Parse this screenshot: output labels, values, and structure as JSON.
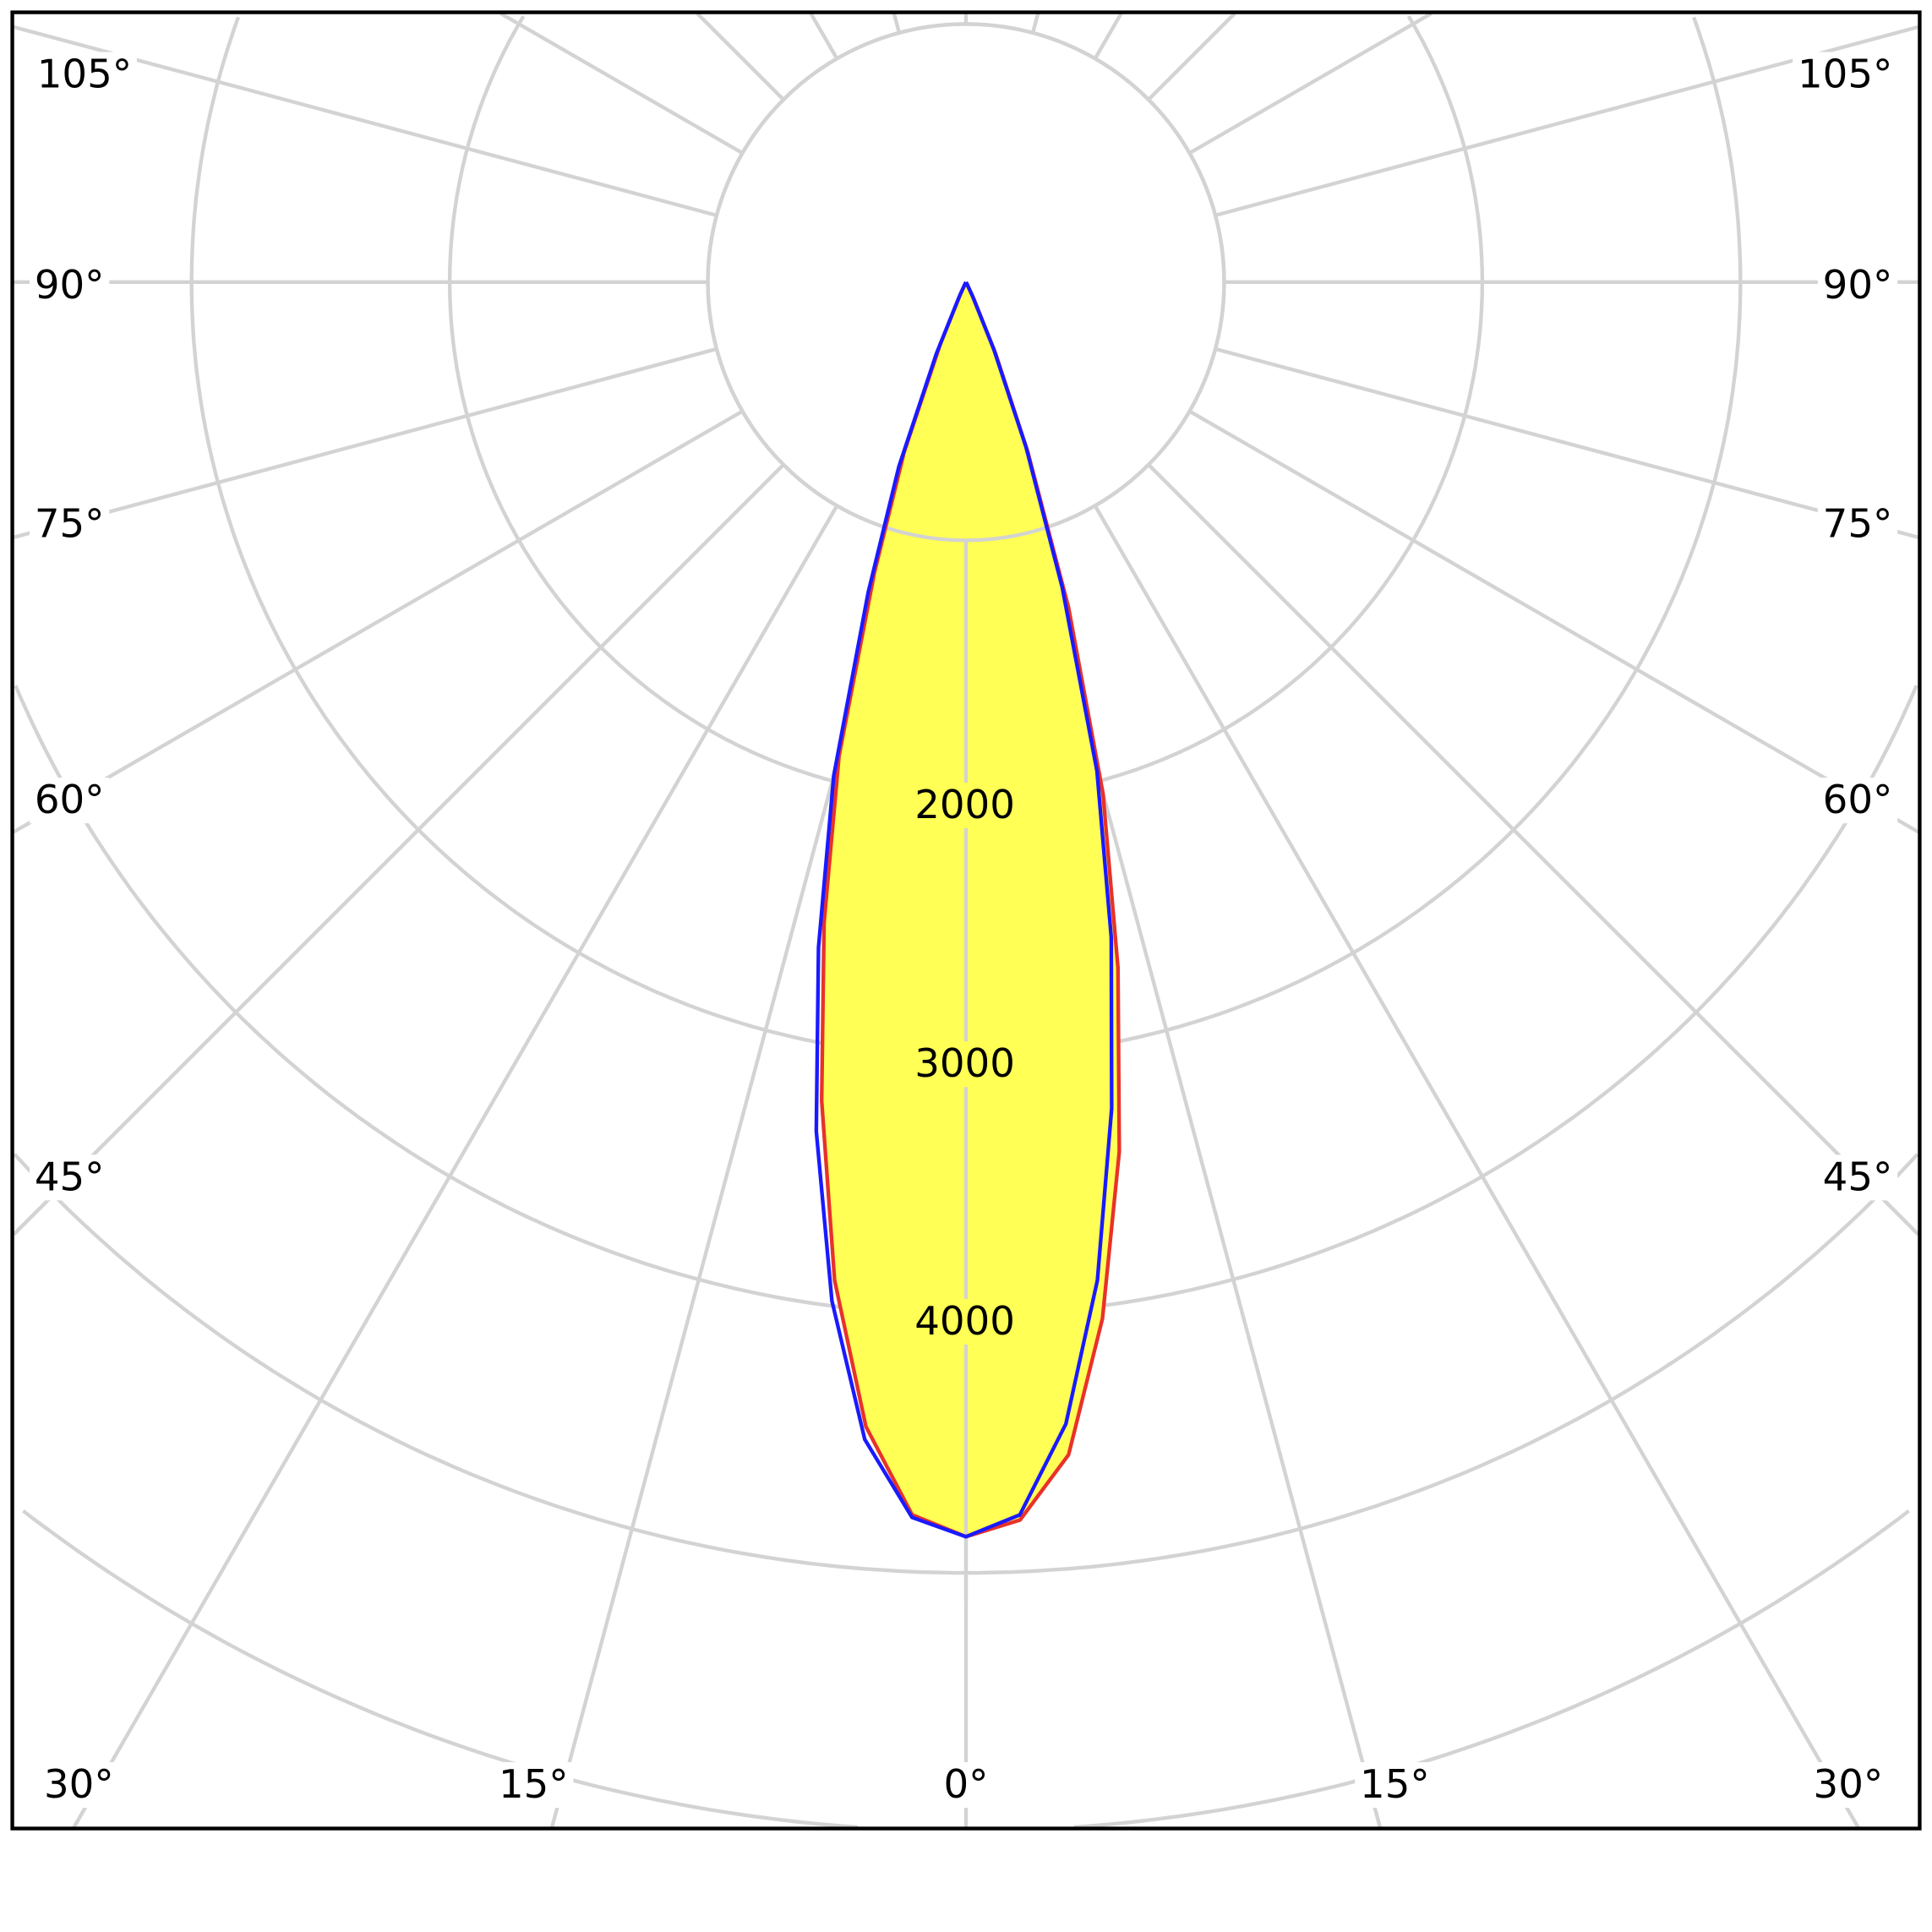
{
  "chart_data": {
    "type": "polar",
    "angle_unit": "degrees",
    "angle_labels_left": [
      "105°",
      "90°",
      "75°",
      "60°",
      "45°"
    ],
    "angle_labels_right": [
      "105°",
      "90°",
      "75°",
      "60°",
      "45°"
    ],
    "angle_labels_bottom": [
      "30°",
      "15°",
      "0°",
      "15°",
      "30°"
    ],
    "radial_tick_labels": [
      "2000",
      "3000",
      "4000"
    ],
    "radial_ticks": [
      1000,
      2000,
      3000,
      4000,
      5000,
      6000,
      7000,
      8000
    ],
    "angular_gridlines_step": 15,
    "grid": true,
    "fill_color": "#ffff55",
    "series": [
      {
        "color": "#e8322a",
        "angles": [
          -30,
          -27.5,
          -25,
          -22.5,
          -20,
          -17.5,
          -15,
          -12.5,
          -10,
          -7.5,
          -5,
          -2.5,
          0,
          2.5,
          5,
          7.5,
          10,
          12.5,
          15,
          17.5,
          20,
          22.5,
          25,
          27.5,
          30
        ],
        "values": [
          0,
          10,
          50,
          260,
          700,
          1180,
          1900,
          2540,
          3220,
          3900,
          4450,
          4780,
          4860,
          4800,
          4560,
          4050,
          3420,
          2720,
          2050,
          1320,
          700,
          300,
          70,
          10,
          0
        ]
      },
      {
        "color": "#1a1aff",
        "angles": [
          -30,
          -27.5,
          -25,
          -22.5,
          -20,
          -17.5,
          -15,
          -12.5,
          -10,
          -7.5,
          -5,
          -2.5,
          0,
          2.5,
          5,
          7.5,
          10,
          12.5,
          15,
          17.5,
          20,
          22.5,
          25,
          27.5,
          30
        ],
        "values": [
          0,
          10,
          60,
          300,
          760,
          1260,
          1980,
          2640,
          3340,
          3980,
          4500,
          4790,
          4860,
          4780,
          4440,
          3900,
          3250,
          2600,
          1960,
          1240,
          680,
          280,
          60,
          10,
          0
        ]
      }
    ]
  }
}
